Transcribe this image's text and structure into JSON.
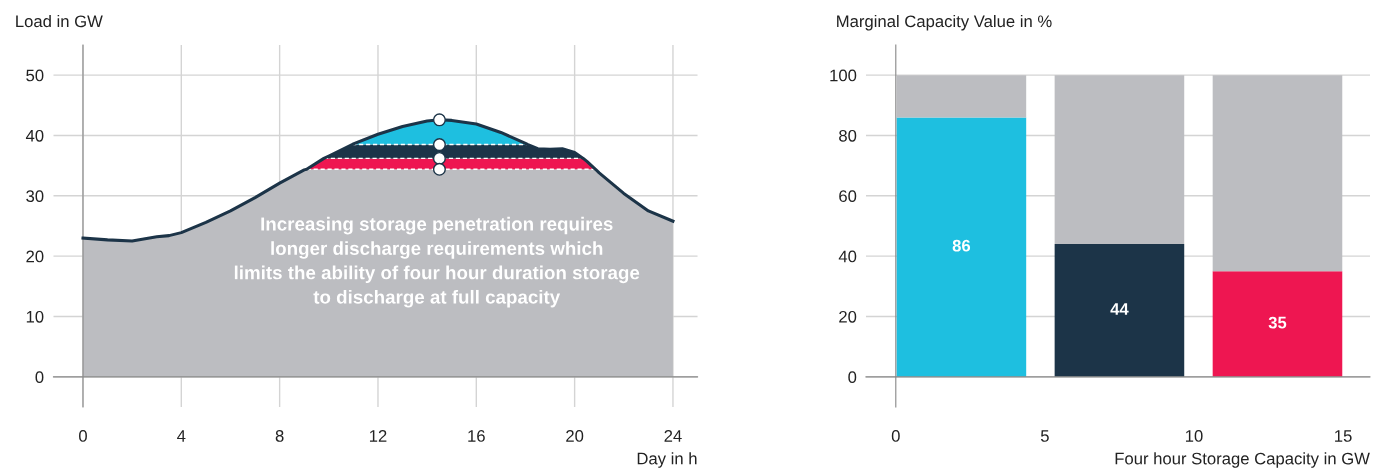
{
  "chart_data": [
    {
      "type": "area",
      "stacked": true,
      "xlabel": "Day in h",
      "ylabel": "Load in GW",
      "x": [
        0,
        1,
        2,
        3,
        3.5,
        4,
        5,
        6,
        7,
        8,
        9,
        9.1,
        9.8,
        10,
        10.95,
        11,
        12,
        13,
        14,
        14.5,
        15,
        16,
        17,
        18,
        18.1,
        18.5,
        19,
        19.5,
        20,
        20.35,
        20.5,
        20.85,
        21,
        22,
        23,
        24
      ],
      "series": [
        {
          "color": "#bcbdc1",
          "values": [
            23.0,
            22.7,
            22.5,
            23.2,
            23.4,
            23.9,
            25.6,
            27.5,
            29.7,
            32.1,
            34.3,
            34.4,
            34.4,
            34.4,
            34.4,
            34.4,
            34.4,
            34.4,
            34.4,
            34.4,
            34.4,
            34.4,
            34.4,
            34.4,
            34.4,
            34.4,
            34.4,
            34.4,
            34.4,
            34.4,
            34.4,
            34.4,
            33.8,
            30.4,
            27.5,
            25.8
          ]
        },
        {
          "color": "#ee1651",
          "values": [
            0,
            0,
            0,
            0,
            0,
            0,
            0,
            0,
            0,
            0,
            0,
            0,
            1.8,
            1.8,
            1.8,
            1.8,
            1.8,
            1.8,
            1.8,
            1.8,
            1.8,
            1.8,
            1.8,
            1.8,
            1.8,
            1.8,
            1.8,
            1.8,
            1.8,
            1.8,
            1.3,
            0,
            0,
            0,
            0,
            0
          ]
        },
        {
          "color": "#1c3448",
          "values": [
            0,
            0,
            0,
            0,
            0,
            0,
            0,
            0,
            0,
            0,
            0,
            0,
            0,
            0.4,
            2.3,
            2.3,
            2.3,
            2.3,
            2.3,
            2.3,
            2.3,
            2.3,
            2.3,
            2.3,
            2.3,
            1.6,
            1.5,
            1.6,
            1.0,
            0,
            0,
            0,
            0,
            0,
            0,
            0
          ]
        },
        {
          "color": "#1ebfe0",
          "values": [
            0,
            0,
            0,
            0,
            0,
            0,
            0,
            0,
            0,
            0,
            0,
            0,
            0,
            0,
            0,
            0.1,
            1.7,
            3.0,
            3.9,
            4.1,
            4.0,
            3.4,
            2.0,
            0.2,
            0,
            0,
            0,
            0,
            0,
            0,
            0,
            0,
            0,
            0,
            0,
            0
          ]
        },
        {
          "type": "scatter",
          "color": "#ffffff",
          "marker": "circle",
          "values": [
            null,
            null,
            null,
            null,
            null,
            null,
            null,
            null,
            null,
            null,
            null,
            null,
            null,
            null,
            null,
            null,
            null,
            null,
            null,
            42.6,
            null,
            null,
            null,
            null,
            null,
            null,
            null,
            null,
            null,
            null,
            null,
            null,
            null,
            null,
            null,
            null
          ]
        },
        {
          "type": "scatter",
          "color": "#ffffff",
          "marker": "circle",
          "values": [
            null,
            null,
            null,
            null,
            null,
            null,
            null,
            null,
            null,
            null,
            null,
            null,
            null,
            null,
            null,
            null,
            null,
            null,
            null,
            38.5,
            null,
            null,
            null,
            null,
            null,
            null,
            null,
            null,
            null,
            null,
            null,
            null,
            null,
            null,
            null,
            null
          ]
        },
        {
          "type": "scatter",
          "color": "#ffffff",
          "marker": "circle",
          "values": [
            null,
            null,
            null,
            null,
            null,
            null,
            null,
            null,
            null,
            null,
            null,
            null,
            null,
            null,
            null,
            null,
            null,
            null,
            null,
            36.2,
            null,
            null,
            null,
            null,
            null,
            null,
            null,
            null,
            null,
            null,
            null,
            null,
            null,
            null,
            null,
            null
          ]
        },
        {
          "type": "scatter",
          "color": "#ffffff",
          "marker": "circle",
          "values": [
            null,
            null,
            null,
            null,
            null,
            null,
            null,
            null,
            null,
            null,
            null,
            null,
            null,
            null,
            null,
            null,
            null,
            null,
            null,
            34.4,
            null,
            null,
            null,
            null,
            null,
            null,
            null,
            null,
            null,
            null,
            null,
            null,
            null,
            null,
            null,
            null
          ]
        }
      ],
      "annotations": [
        "Increasing storage penetration requires\nlonger discharge requirements which\nlimits the ability of four hour duration storage\nto discharge at full capacity"
      ],
      "xlim": [
        -1.2,
        25
      ],
      "ylim": [
        -5,
        55
      ],
      "xticks": [
        0,
        4,
        8,
        12,
        16,
        20,
        24
      ],
      "yticks": [
        0,
        10,
        20,
        30,
        40,
        50
      ],
      "grid": true
    },
    {
      "type": "bar",
      "stacked": true,
      "xlabel": "Four hour Storage Capacity in GW",
      "ylabel": "Marginal Capacity Value in %",
      "x": [
        2.2,
        7.5,
        12.8
      ],
      "series": [
        {
          "colors": [
            "#1ebfe0",
            "#1c3448",
            "#ee1651"
          ],
          "values": [
            86,
            44,
            35
          ],
          "value_labels": [
            "86",
            "44",
            "35"
          ]
        },
        {
          "color": "#bcbdc1",
          "values": [
            14,
            56,
            65
          ]
        }
      ],
      "xlim": [
        -1,
        15.9
      ],
      "ylim": [
        -10,
        110
      ],
      "xticks": [
        0,
        5,
        10,
        15
      ],
      "yticks": [
        0,
        20,
        40,
        60,
        80,
        100
      ],
      "grid": "y"
    }
  ]
}
